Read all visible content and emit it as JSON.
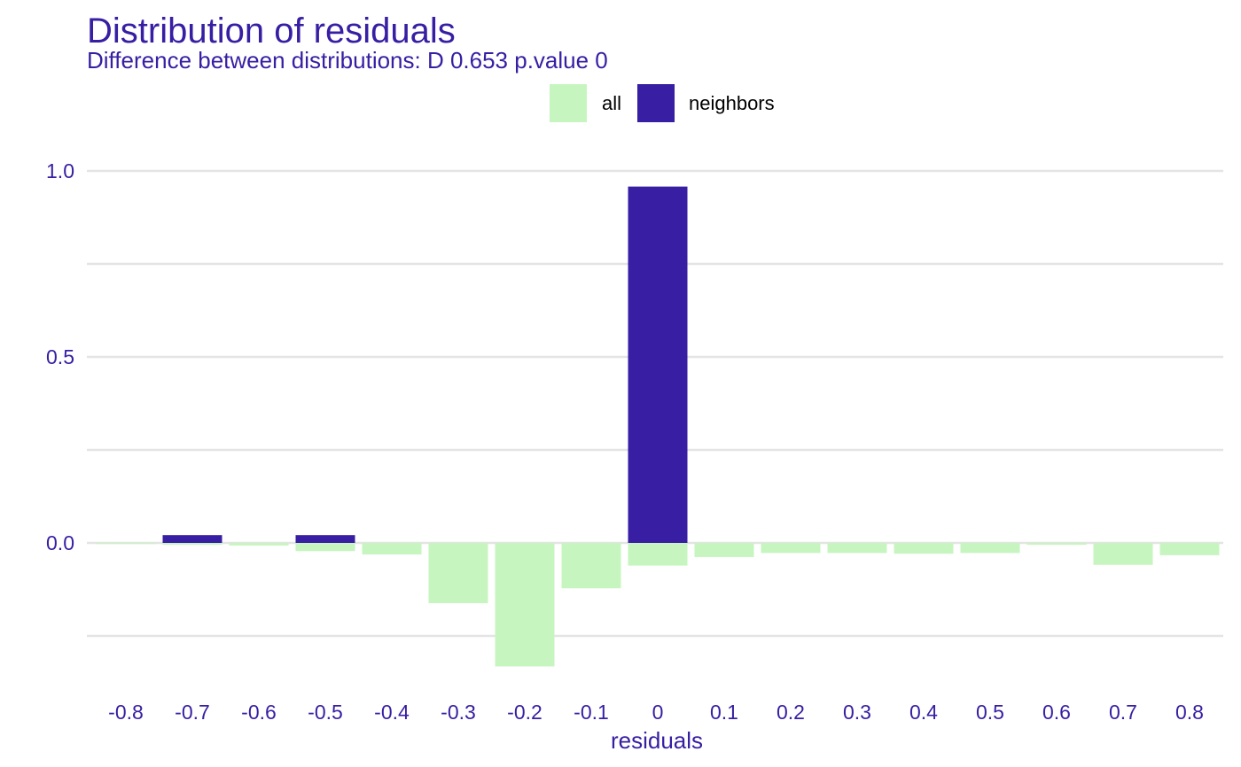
{
  "colors": {
    "text": "#371ea3",
    "all": "#c7f5bf",
    "neighbors": "#371ea3",
    "grid": "#e4e4e4"
  },
  "chart_data": {
    "type": "bar",
    "title": "Distribution of residuals",
    "subtitle": "Difference between distributions: D 0.653 p.value 0",
    "xlabel": "residuals",
    "ylabel": "",
    "categories": [
      "-0.8",
      "-0.7",
      "-0.6",
      "-0.5",
      "-0.4",
      "-0.3",
      "-0.2",
      "-0.1",
      "0",
      "0.1",
      "0.2",
      "0.3",
      "0.4",
      "0.5",
      "0.6",
      "0.7",
      "0.8"
    ],
    "y_ticks": [
      "0.0",
      "0.5",
      "1.0"
    ],
    "y_tick_values": [
      0,
      0.5,
      1.0
    ],
    "ylim": [
      -0.35,
      1.0
    ],
    "grid": true,
    "legend": {
      "position": "top",
      "items": [
        {
          "key": "all",
          "label": "all"
        },
        {
          "key": "neighbors",
          "label": "neighbors"
        }
      ]
    },
    "series": [
      {
        "name": "all",
        "direction": "down",
        "values": [
          0.003,
          0.005,
          0.007,
          0.022,
          0.031,
          0.162,
          0.332,
          0.122,
          0.061,
          0.038,
          0.027,
          0.027,
          0.029,
          0.027,
          0.005,
          0.059,
          0.033
        ]
      },
      {
        "name": "neighbors",
        "direction": "up",
        "values": [
          0,
          0.021,
          0,
          0.021,
          0,
          0,
          0,
          0,
          0.958,
          0,
          0,
          0,
          0,
          0,
          0,
          0,
          0
        ]
      }
    ]
  }
}
